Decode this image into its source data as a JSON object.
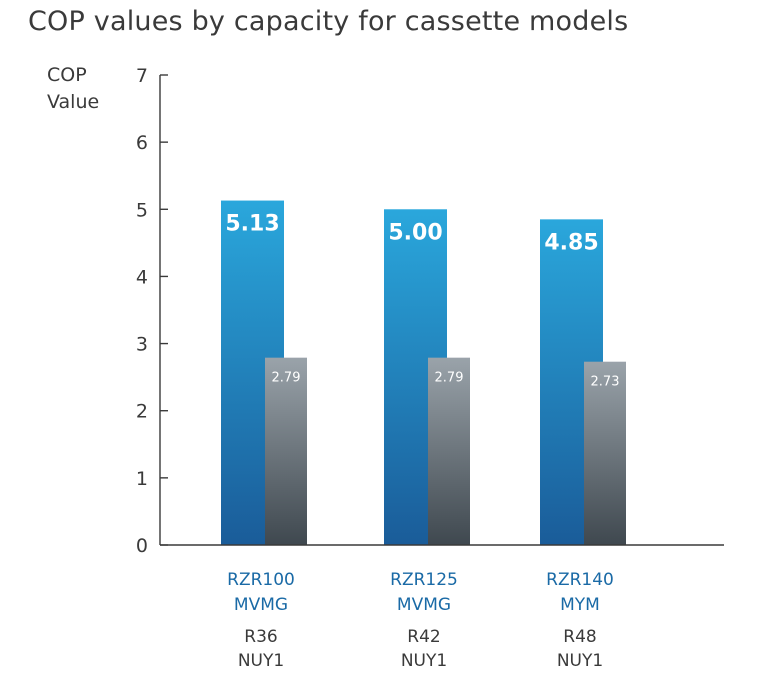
{
  "colors": {
    "series_a_top": "#2aa7dc",
    "series_a_bottom": "#1a5c99",
    "series_b_top": "#9aa3aa",
    "series_b_bottom": "#3f484f",
    "model_label": "#1a6aa6",
    "text": "#3a3a3a"
  },
  "chart_data": {
    "type": "bar",
    "title": "COP values by capacity for cassette models",
    "ylabel": [
      "COP",
      "Value"
    ],
    "xlabel": "",
    "ylim": [
      0,
      7
    ],
    "yticks": [
      0,
      1,
      2,
      3,
      4,
      5,
      6,
      7
    ],
    "grid": false,
    "categories": [
      {
        "model": [
          "RZR100",
          "MVMG"
        ],
        "outdoor": [
          "R36",
          "NUY1"
        ]
      },
      {
        "model": [
          "RZR125",
          "MVMG"
        ],
        "outdoor": [
          "R42",
          "NUY1"
        ]
      },
      {
        "model": [
          "RZR140",
          "MYM"
        ],
        "outdoor": [
          "R48",
          "NUY1"
        ]
      }
    ],
    "series": [
      {
        "values": [
          5.13,
          5.0,
          4.85
        ],
        "labels": [
          "5.13",
          "5.00",
          "4.85"
        ]
      },
      {
        "values": [
          2.79,
          2.79,
          2.73
        ],
        "labels": [
          "2.79",
          "2.79",
          "2.73"
        ]
      }
    ]
  }
}
